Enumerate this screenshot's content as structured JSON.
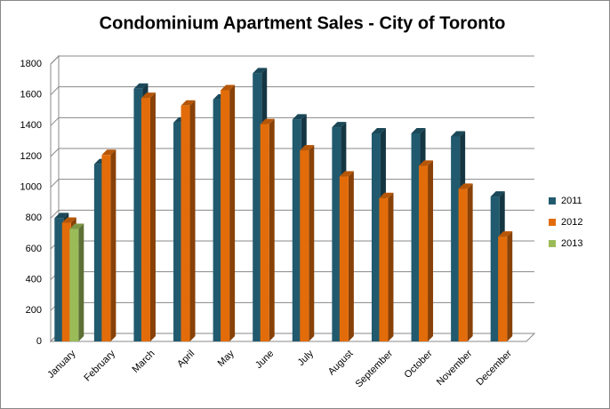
{
  "chart_data": {
    "type": "bar3d",
    "title": "Condominium Apartment Sales - City of Toronto",
    "categories": [
      "January",
      "February",
      "March",
      "April",
      "May",
      "June",
      "July",
      "August",
      "September",
      "October",
      "November",
      "December"
    ],
    "series": [
      {
        "name": "2011",
        "color": "#215a6e",
        "values": [
          800,
          1150,
          1640,
          1420,
          1570,
          1740,
          1440,
          1390,
          1350,
          1350,
          1330,
          940
        ]
      },
      {
        "name": "2012",
        "color": "#e36c0a",
        "values": [
          770,
          1210,
          1580,
          1530,
          1630,
          1410,
          1240,
          1070,
          930,
          1140,
          990,
          680
        ]
      },
      {
        "name": "2013",
        "color": "#9bbb59",
        "values": [
          730,
          null,
          null,
          null,
          null,
          null,
          null,
          null,
          null,
          null,
          null,
          null
        ]
      }
    ],
    "ylim": [
      0,
      1800
    ],
    "yticks": [
      0,
      200,
      400,
      600,
      800,
      1000,
      1200,
      1400,
      1600,
      1800
    ],
    "grid": true,
    "legend": "right"
  }
}
